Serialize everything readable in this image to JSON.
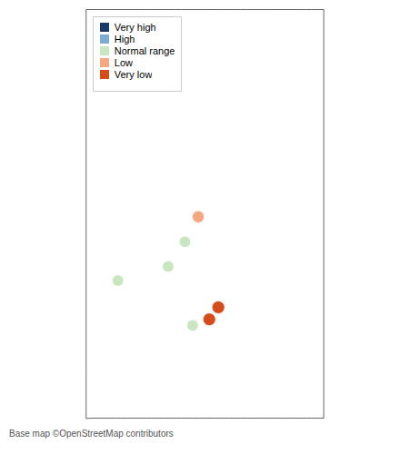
{
  "chart_data": {
    "type": "scatter",
    "annotations": [
      "Base map ©OpenStreetMap contributors"
    ],
    "xlim": [
      -7.8,
      -0.7
    ],
    "ylim": [
      54.5,
      61.0
    ],
    "tick_labels": false,
    "grid": false,
    "legend": "upper left",
    "series": [
      {
        "name": "Very high",
        "color": "#1a3a6b",
        "x": [],
        "values": [],
        "sizes": []
      },
      {
        "name": "High",
        "color": "#7eadd4",
        "x": [],
        "values": [],
        "sizes": []
      },
      {
        "name": "Normal range",
        "color": "#c8e6c0",
        "x": [
          -4.85,
          -5.35,
          -6.85,
          -4.62
        ],
        "values": [
          57.45,
          57.05,
          56.82,
          56.08
        ],
        "sizes": [
          90,
          90,
          90,
          90
        ]
      },
      {
        "name": "Low",
        "color": "#f4a882",
        "x": [
          -4.45
        ],
        "values": [
          57.85
        ],
        "sizes": [
          100
        ]
      },
      {
        "name": "Very low",
        "color": "#d44c1a",
        "x": [
          -3.85,
          -4.12
        ],
        "values": [
          56.38,
          56.18
        ],
        "sizes": [
          110,
          110
        ]
      }
    ]
  }
}
